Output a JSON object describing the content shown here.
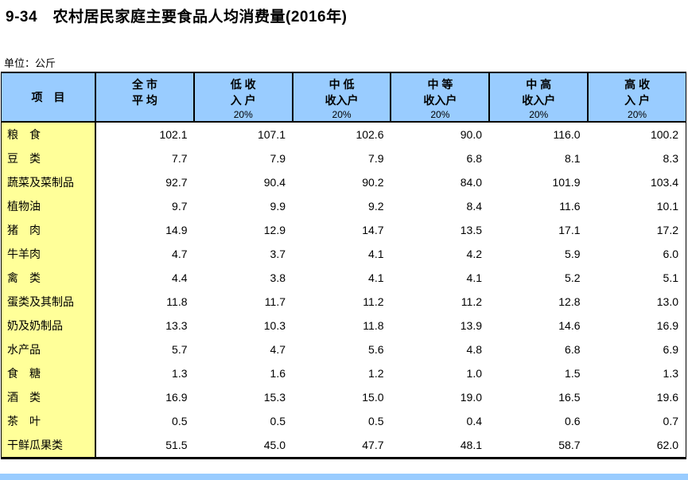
{
  "page": {
    "title": "9-34　农村居民家庭主要食品人均消费量(2016年)",
    "unit_label": "单位：公斤"
  },
  "colors": {
    "header_bg": "#99CCFF",
    "label_column_bg": "#FFFF99",
    "border": "#000000",
    "next_table_strip": "#99CCFF"
  },
  "table": {
    "item_header": "项　目",
    "columns": [
      {
        "line1": "全 市",
        "line2": "平 均",
        "line3": ""
      },
      {
        "line1": "低 收",
        "line2": "入 户",
        "line3": "20%"
      },
      {
        "line1": "中 低",
        "line2": "收入户",
        "line3": "20%"
      },
      {
        "line1": "中 等",
        "line2": "收入户",
        "line3": "20%"
      },
      {
        "line1": "中 高",
        "line2": "收入户",
        "line3": "20%"
      },
      {
        "line1": "高 收",
        "line2": "入 户",
        "line3": "20%"
      }
    ],
    "rows": [
      {
        "label": "粮　食",
        "values": [
          "102.1",
          "107.1",
          "102.6",
          "90.0",
          "116.0",
          "100.2"
        ]
      },
      {
        "label": "豆　类",
        "values": [
          "7.7",
          "7.9",
          "7.9",
          "6.8",
          "8.1",
          "8.3"
        ]
      },
      {
        "label": "蔬菜及菜制品",
        "values": [
          "92.7",
          "90.4",
          "90.2",
          "84.0",
          "101.9",
          "103.4"
        ]
      },
      {
        "label": "植物油",
        "values": [
          "9.7",
          "9.9",
          "9.2",
          "8.4",
          "11.6",
          "10.1"
        ]
      },
      {
        "label": "猪　肉",
        "values": [
          "14.9",
          "12.9",
          "14.7",
          "13.5",
          "17.1",
          "17.2"
        ]
      },
      {
        "label": "牛羊肉",
        "values": [
          "4.7",
          "3.7",
          "4.1",
          "4.2",
          "5.9",
          "6.0"
        ]
      },
      {
        "label": "禽　类",
        "values": [
          "4.4",
          "3.8",
          "4.1",
          "4.1",
          "5.2",
          "5.1"
        ]
      },
      {
        "label": "蛋类及其制品",
        "values": [
          "11.8",
          "11.7",
          "11.2",
          "11.2",
          "12.8",
          "13.0"
        ]
      },
      {
        "label": "奶及奶制品",
        "values": [
          "13.3",
          "10.3",
          "11.8",
          "13.9",
          "14.6",
          "16.9"
        ]
      },
      {
        "label": "水产品",
        "values": [
          "5.7",
          "4.7",
          "5.6",
          "4.8",
          "6.8",
          "6.9"
        ]
      },
      {
        "label": "食　糖",
        "values": [
          "1.3",
          "1.6",
          "1.2",
          "1.0",
          "1.5",
          "1.3"
        ]
      },
      {
        "label": "酒　类",
        "values": [
          "16.9",
          "15.3",
          "15.0",
          "19.0",
          "16.5",
          "19.6"
        ]
      },
      {
        "label": "茶　叶",
        "values": [
          "0.5",
          "0.5",
          "0.5",
          "0.4",
          "0.6",
          "0.7"
        ]
      },
      {
        "label": "干鲜瓜果类",
        "values": [
          "51.5",
          "45.0",
          "47.7",
          "48.1",
          "58.7",
          "62.0"
        ]
      }
    ]
  }
}
